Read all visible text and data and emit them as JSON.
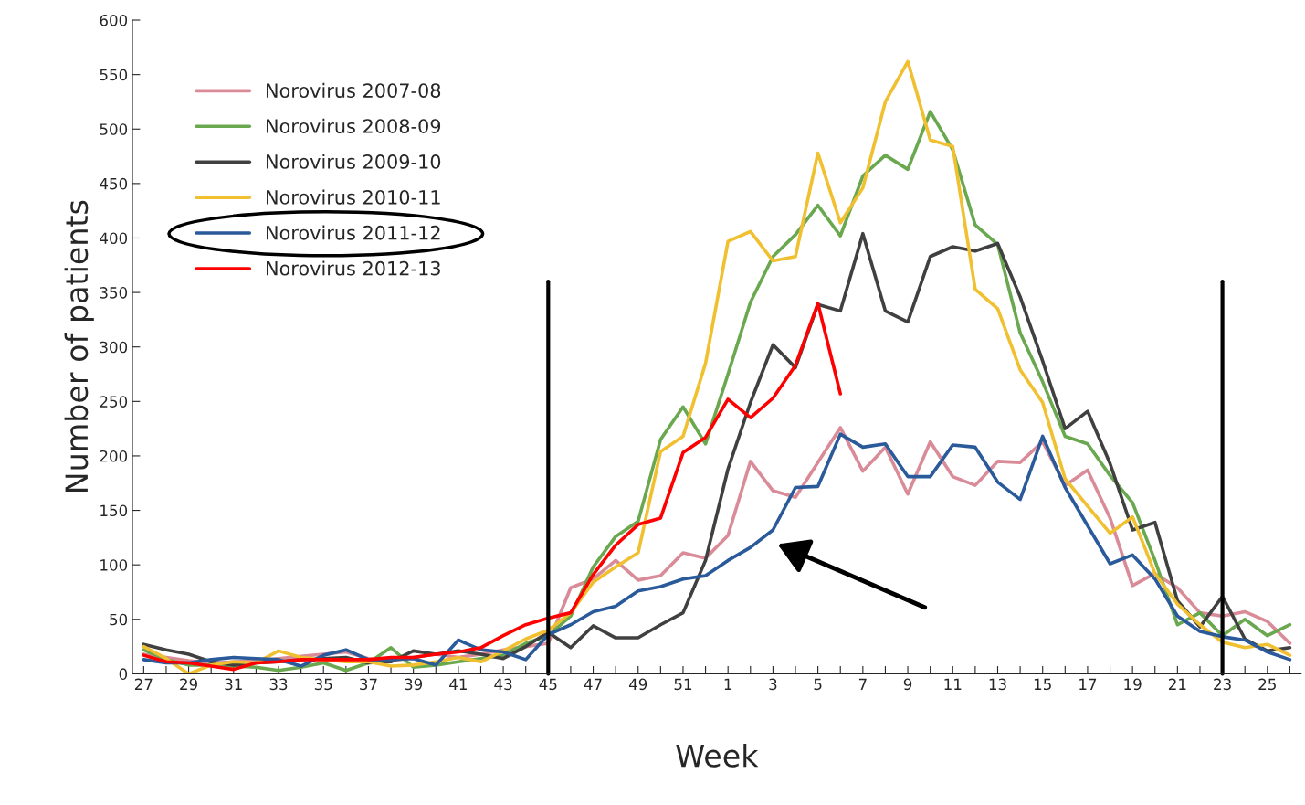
{
  "chart_data": {
    "type": "line",
    "xlabel": "Week",
    "ylabel": "Number of patients",
    "categories": [
      "27",
      null,
      "29",
      null,
      "31",
      null,
      "33",
      null,
      "35",
      null,
      "37",
      null,
      "39",
      null,
      "41",
      null,
      "43",
      null,
      "45",
      null,
      "47",
      null,
      "49",
      null,
      "51",
      null,
      "1",
      null,
      "3",
      null,
      "5",
      null,
      "7",
      null,
      "9",
      null,
      "11",
      null,
      "13",
      null,
      "15",
      null,
      "17",
      null,
      "19",
      null,
      "21",
      null,
      "23",
      null,
      "25",
      null
    ],
    "ylim": [
      0,
      600
    ],
    "yticks": [
      0,
      50,
      100,
      150,
      200,
      250,
      300,
      350,
      400,
      450,
      500,
      550,
      600
    ],
    "grid": false,
    "legend": "top left",
    "marker": "none",
    "line_style": "solid",
    "ref_lines": [
      {
        "axis": "x",
        "value": "45",
        "color": "#000000"
      },
      {
        "axis": "x",
        "value": "23",
        "color": "#000000"
      }
    ],
    "series": [
      {
        "name": "Norovirus 2007-08",
        "color": "#d98c98",
        "values": [
          18,
          15,
          12,
          10,
          null,
          12,
          14,
          16,
          18,
          20,
          14,
          12,
          15,
          18,
          15,
          18,
          22,
          25,
          28,
          79,
          87,
          104,
          86,
          90,
          111,
          106,
          127,
          195,
          168,
          162,
          194,
          226,
          186,
          208,
          165,
          213,
          181,
          173,
          195,
          194,
          213,
          173,
          187,
          143,
          81,
          92,
          79,
          56,
          53,
          57,
          48,
          28
        ]
      },
      {
        "name": "Norovirus 2008-09",
        "color": "#6aa84f",
        "values": [
          22,
          13,
          8,
          8,
          7,
          6,
          3,
          6,
          10,
          3,
          10,
          24,
          6,
          8,
          11,
          14,
          17,
          28,
          35,
          53,
          98,
          126,
          140,
          215,
          245,
          211,
          275,
          341,
          383,
          403,
          430,
          402,
          457,
          476,
          463,
          516,
          481,
          412,
          394,
          313,
          268,
          218,
          211,
          182,
          157,
          104,
          45,
          56,
          35,
          50,
          35,
          45
        ]
      },
      {
        "name": "Norovirus 2009-10",
        "color": "#404040",
        "values": [
          27,
          22,
          18,
          11,
          8,
          10,
          11,
          13,
          14,
          15,
          10,
          11,
          21,
          18,
          21,
          18,
          14,
          25,
          38,
          24,
          44,
          33,
          33,
          45,
          56,
          104,
          188,
          249,
          302,
          281,
          339,
          333,
          404,
          333,
          323,
          383,
          392,
          388,
          395,
          346,
          287,
          225,
          241,
          193,
          132,
          139,
          67,
          43,
          71,
          32,
          21,
          24
        ]
      },
      {
        "name": "Norovirus 2010-11",
        "color": "#f0c030",
        "values": [
          25,
          14,
          0,
          8,
          11,
          10,
          21,
          15,
          13,
          11,
          11,
          7,
          8,
          11,
          15,
          11,
          21,
          32,
          40,
          56,
          84,
          98,
          111,
          204,
          218,
          285,
          397,
          406,
          379,
          383,
          478,
          414,
          446,
          525,
          562,
          490,
          484,
          353,
          335,
          279,
          249,
          179,
          154,
          129,
          144,
          92,
          64,
          45,
          29,
          24,
          27,
          17
        ]
      },
      {
        "name": "Norovirus 2011-12",
        "color": "#2a5a9a",
        "values": [
          13,
          10,
          10,
          13,
          15,
          14,
          13,
          7,
          17,
          22,
          13,
          13,
          14,
          8,
          31,
          22,
          20,
          13,
          36,
          45,
          57,
          62,
          76,
          80,
          87,
          90,
          104,
          116,
          132,
          171,
          172,
          220,
          208,
          211,
          181,
          181,
          210,
          208,
          176,
          160,
          218,
          171,
          136,
          101,
          109,
          87,
          53,
          39,
          34,
          31,
          20,
          13
        ]
      },
      {
        "name": "Norovirus 2012-13",
        "color": "#ff0000",
        "values": [
          17,
          11,
          10,
          7,
          4,
          10,
          11,
          13,
          13,
          13,
          13,
          15,
          15,
          18,
          20,
          24,
          35,
          45,
          51,
          56,
          91,
          118,
          137,
          143,
          203,
          217,
          252,
          235,
          253,
          283,
          340,
          257,
          null,
          null,
          null,
          null,
          null,
          null,
          null,
          null,
          null,
          null,
          null,
          null,
          null,
          null,
          null,
          null,
          null,
          null,
          null,
          null
        ]
      }
    ]
  }
}
